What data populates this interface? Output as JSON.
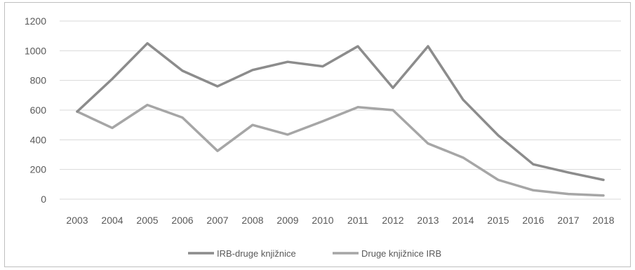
{
  "chart_data": {
    "type": "line",
    "title": "",
    "xlabel": "",
    "ylabel": "",
    "x": [
      "2003",
      "2004",
      "2005",
      "2006",
      "2007",
      "2008",
      "2009",
      "2010",
      "2011",
      "2012",
      "2013",
      "2014",
      "2015",
      "2016",
      "2017",
      "2018"
    ],
    "ylim": [
      0,
      1200
    ],
    "yticks": [
      0,
      200,
      400,
      600,
      800,
      1000,
      1200
    ],
    "grid": true,
    "legend_position": "bottom",
    "series": [
      {
        "name": "IRB-druge knjižnice",
        "color": "#8c8c8c",
        "values": [
          590,
          810,
          1050,
          865,
          760,
          870,
          925,
          895,
          1030,
          750,
          1030,
          670,
          430,
          235,
          180,
          130
        ]
      },
      {
        "name": "Druge knjižnice IRB",
        "color": "#a6a6a6",
        "values": [
          590,
          480,
          635,
          550,
          325,
          500,
          435,
          525,
          620,
          600,
          375,
          280,
          130,
          60,
          35,
          25
        ]
      }
    ]
  }
}
